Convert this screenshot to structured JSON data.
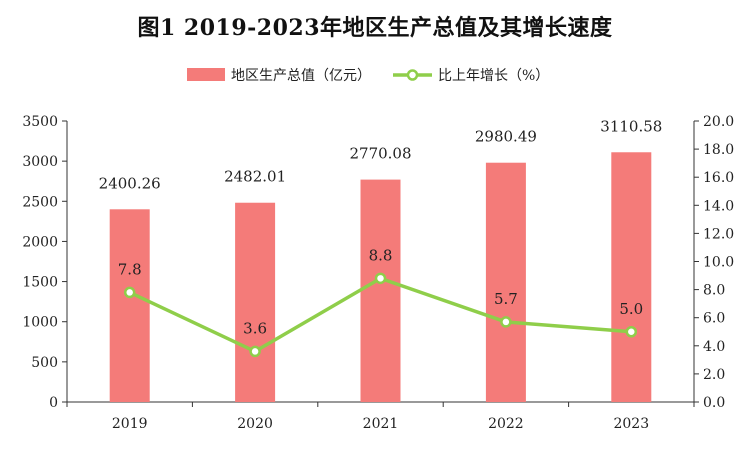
{
  "title": "图1  2019-2023年地区生产总值及其增长速度",
  "chart_data": {
    "type": "bar",
    "categories": [
      "2019",
      "2020",
      "2021",
      "2022",
      "2023"
    ],
    "series": [
      {
        "name": "地区生产总值（亿元）",
        "type": "bar",
        "axis": "left",
        "color": "#f47b79",
        "values": [
          2400.26,
          2482.01,
          2770.08,
          2980.49,
          3110.58
        ],
        "labels": [
          "2400.26",
          "2482.01",
          "2770.08",
          "2980.49",
          "3110.58"
        ]
      },
      {
        "name": "比上年增长（%）",
        "type": "line",
        "axis": "right",
        "color": "#8fce4a",
        "values": [
          7.8,
          3.6,
          8.8,
          5.7,
          5.0
        ],
        "labels": [
          "7.8",
          "3.6",
          "8.8",
          "5.7",
          "5.0"
        ]
      }
    ],
    "y_left": {
      "min": 0,
      "max": 3500,
      "ticks": [
        "0",
        "500",
        "1000",
        "1500",
        "2000",
        "2500",
        "3000",
        "3500"
      ]
    },
    "y_right": {
      "min": 0,
      "max": 20,
      "ticks": [
        "0.0",
        "2.0",
        "4.0",
        "6.0",
        "8.0",
        "10.0",
        "12.0",
        "14.0",
        "16.0",
        "18.0",
        "20.0"
      ]
    },
    "legend_position": "top-center",
    "grid": false
  }
}
